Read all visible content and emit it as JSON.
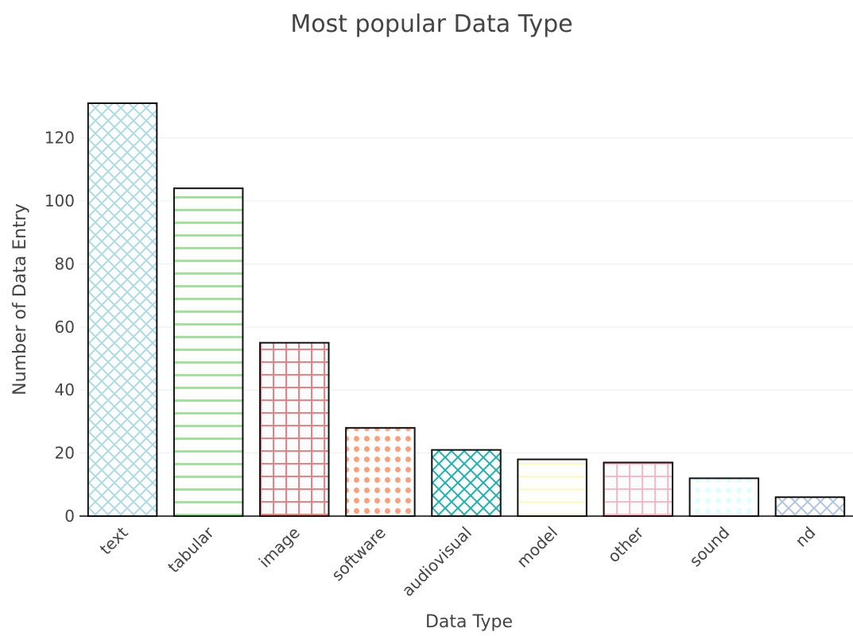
{
  "chart_data": {
    "type": "bar",
    "title": "Most popular Data Type",
    "xlabel": "Data Type",
    "ylabel": "Number of Data Entry",
    "categories": [
      "text",
      "tabular",
      "image",
      "software",
      "audiovisual",
      "model",
      "other",
      "sound",
      "nd"
    ],
    "values": [
      131,
      104,
      55,
      28,
      21,
      18,
      17,
      12,
      6
    ],
    "ylim": [
      0,
      131
    ],
    "yticks": [
      0,
      20,
      40,
      60,
      80,
      100,
      120
    ],
    "grid": true,
    "bar_styles": [
      {
        "pattern": "crosshatch-diagonal",
        "color": "#add8e6"
      },
      {
        "pattern": "horizontal-lines",
        "color": "#90ee90"
      },
      {
        "pattern": "grid",
        "color": "#f08080"
      },
      {
        "pattern": "dots",
        "color": "#ffa07a"
      },
      {
        "pattern": "crosshatch-diagonal",
        "color": "#20b2aa"
      },
      {
        "pattern": "horizontal-lines",
        "color": "#fffacd"
      },
      {
        "pattern": "grid",
        "color": "#ffb6c1"
      },
      {
        "pattern": "dots",
        "color": "#e0ffff"
      },
      {
        "pattern": "crosshatch-diagonal",
        "color": "#b0c4de"
      }
    ]
  }
}
